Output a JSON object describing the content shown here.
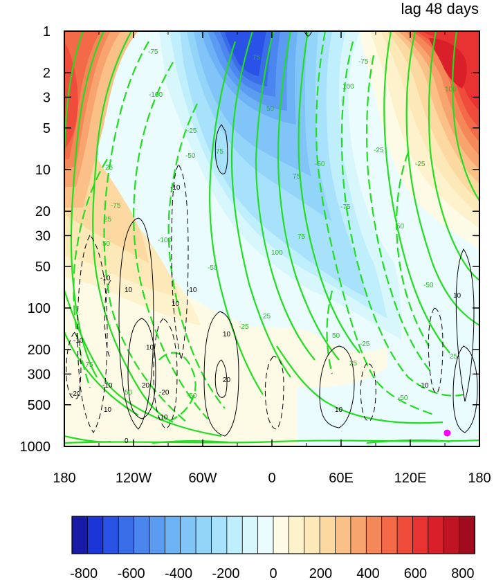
{
  "chart_data": {
    "type": "heatmap",
    "title": "lag 48 days",
    "x_axis": {
      "tick_labels": [
        "180",
        "120W",
        "60W",
        "0",
        "60E",
        "120E",
        "180"
      ],
      "tick_values": [
        -180,
        -120,
        -60,
        0,
        60,
        120,
        180
      ],
      "range": [
        -180,
        180
      ]
    },
    "y_axis": {
      "scale": "log",
      "reversed": true,
      "tick_labels": [
        "1",
        "2",
        "3",
        "5",
        "10",
        "20",
        "30",
        "50",
        "100",
        "200",
        "300",
        "500",
        "1000"
      ],
      "tick_values": [
        1,
        2,
        3,
        5,
        10,
        20,
        30,
        50,
        100,
        200,
        300,
        500,
        1000
      ],
      "range": [
        1,
        1000
      ]
    },
    "colorbar": {
      "tick_labels": [
        "-800",
        "-600",
        "-400",
        "-200",
        "0",
        "200",
        "400",
        "600",
        "800"
      ],
      "range": [
        -850,
        850
      ],
      "interval": 50,
      "colors": [
        "#1a1aa8",
        "#1c35d9",
        "#2a52e6",
        "#3a6ee8",
        "#4a86ee",
        "#5b9cf2",
        "#6cb2f5",
        "#80c4f8",
        "#93d4f9",
        "#a8e1fb",
        "#bfeefc",
        "#d8f7fd",
        "#eafcfd",
        "#fdfbe5",
        "#fdf2cc",
        "#fde8b8",
        "#fbd9a0",
        "#fac088",
        "#f8a46e",
        "#f58858",
        "#f26a48",
        "#ef4c3c",
        "#e93332",
        "#d9202a",
        "#c01424",
        "#a00c1e"
      ]
    },
    "shading_features": [
      {
        "kind": "negative-max",
        "lon": -35,
        "p": 1.6,
        "value": -650
      },
      {
        "kind": "positive-max",
        "lon": 150,
        "p": 1.8,
        "value": 700
      },
      {
        "kind": "positive-max",
        "lon": -175,
        "p": 2,
        "value": 600
      }
    ],
    "green_contour_labels": [
      "-75",
      "75",
      "-75",
      "100",
      "-100",
      "-25",
      "25",
      "-50",
      "50",
      "-75",
      "75",
      "-100",
      "100",
      "-25",
      "25",
      "-50",
      "50",
      "-25",
      "25",
      "-50",
      "50",
      "75",
      "-75",
      "100",
      "-25",
      "25",
      "-50",
      "50",
      "-25",
      "25",
      "-50",
      "-75",
      "75",
      "-50",
      "50"
    ],
    "black_contour_labels": [
      "-10",
      "10",
      "-10",
      "10",
      "-20",
      "20",
      "-10",
      "10",
      "-20",
      "20",
      "-10",
      "10",
      "-10",
      "10",
      "-10",
      "10",
      "-10",
      "10",
      "0"
    ],
    "marker": {
      "lon": 152,
      "p": 800,
      "color": "#ff00ff"
    }
  }
}
